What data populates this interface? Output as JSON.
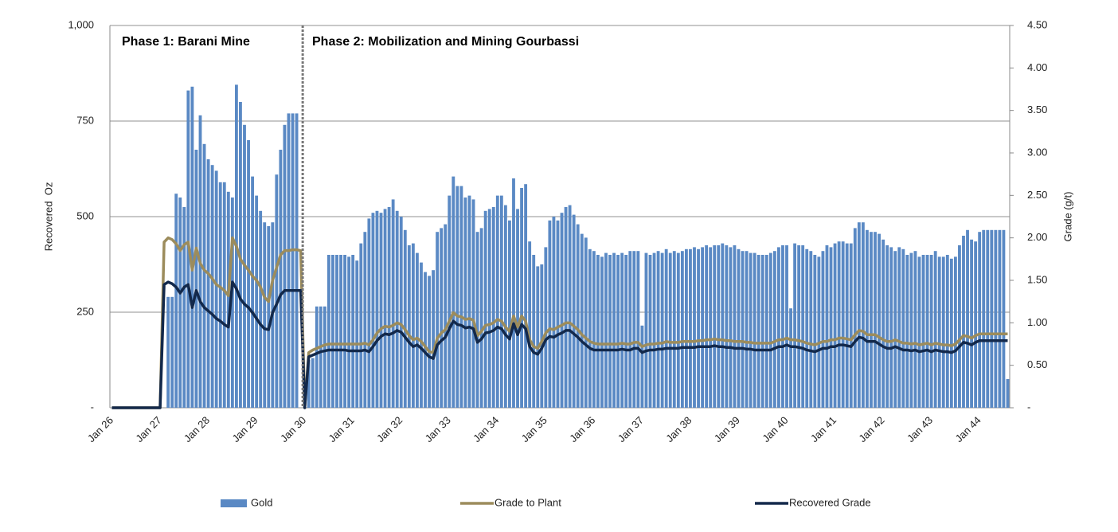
{
  "chart_data": {
    "type": "bar_line",
    "annotations": [
      "Phase 1: Barani Mine",
      "Phase 2: Mobilization and Mining Gourbassi"
    ],
    "y_label": "Recovered  Oz",
    "y2_label": "Grade (g/t)",
    "categories": [
      "Jan 26",
      null,
      null,
      null,
      null,
      null,
      null,
      null,
      null,
      null,
      null,
      null,
      "Jan 27",
      null,
      null,
      null,
      null,
      null,
      null,
      null,
      null,
      null,
      null,
      null,
      "Jan 28",
      null,
      null,
      null,
      null,
      null,
      null,
      null,
      null,
      null,
      null,
      null,
      "Jan 29",
      null,
      null,
      null,
      null,
      null,
      null,
      null,
      null,
      null,
      null,
      null,
      "Jan 30",
      null,
      null,
      null,
      null,
      null,
      null,
      null,
      null,
      null,
      null,
      null,
      "Jan 31",
      null,
      null,
      null,
      null,
      null,
      null,
      null,
      null,
      null,
      null,
      null,
      "Jan 32",
      null,
      null,
      null,
      null,
      null,
      null,
      null,
      null,
      null,
      null,
      null,
      "Jan 33",
      null,
      null,
      null,
      null,
      null,
      null,
      null,
      null,
      null,
      null,
      null,
      "Jan 34",
      null,
      null,
      null,
      null,
      null,
      null,
      null,
      null,
      null,
      null,
      null,
      "Jan 35",
      null,
      null,
      null,
      null,
      null,
      null,
      null,
      null,
      null,
      null,
      null,
      "Jan 36",
      null,
      null,
      null,
      null,
      null,
      null,
      null,
      null,
      null,
      null,
      null,
      "Jan 37",
      null,
      null,
      null,
      null,
      null,
      null,
      null,
      null,
      null,
      null,
      null,
      "Jan 38",
      null,
      null,
      null,
      null,
      null,
      null,
      null,
      null,
      null,
      null,
      null,
      "Jan 39",
      null,
      null,
      null,
      null,
      null,
      null,
      null,
      null,
      null,
      null,
      null,
      "Jan 40",
      null,
      null,
      null,
      null,
      null,
      null,
      null,
      null,
      null,
      null,
      null,
      "Jan 41",
      null,
      null,
      null,
      null,
      null,
      null,
      null,
      null,
      null,
      null,
      null,
      "Jan 42",
      null,
      null,
      null,
      null,
      null,
      null,
      null,
      null,
      null,
      null,
      null,
      "Jan 43",
      null,
      null,
      null,
      null,
      null,
      null,
      null,
      null,
      null,
      null,
      null,
      "Jan 44",
      null,
      null,
      null,
      null,
      null,
      null,
      null
    ],
    "series": [
      {
        "name": "Gold",
        "type": "bar",
        "color": "#5a89c4",
        "values": [
          0,
          0,
          0,
          0,
          0,
          0,
          0,
          0,
          0,
          0,
          0,
          0,
          0,
          0,
          290,
          290,
          560,
          550,
          525,
          830,
          840,
          675,
          765,
          690,
          650,
          635,
          620,
          590,
          590,
          565,
          550,
          845,
          800,
          740,
          700,
          605,
          555,
          515,
          485,
          475,
          485,
          610,
          675,
          740,
          770,
          770,
          770,
          0,
          0,
          125,
          130,
          265,
          265,
          265,
          400,
          400,
          400,
          400,
          400,
          395,
          400,
          385,
          430,
          460,
          495,
          510,
          515,
          510,
          520,
          525,
          545,
          515,
          500,
          465,
          425,
          430,
          405,
          380,
          355,
          345,
          360,
          460,
          470,
          480,
          555,
          605,
          580,
          580,
          550,
          555,
          545,
          460,
          470,
          515,
          520,
          525,
          555,
          555,
          530,
          490,
          600,
          520,
          575,
          585,
          435,
          400,
          370,
          375,
          420,
          490,
          500,
          490,
          510,
          525,
          530,
          505,
          480,
          455,
          445,
          415,
          410,
          400,
          395,
          405,
          400,
          405,
          400,
          405,
          400,
          410,
          410,
          410,
          215,
          405,
          400,
          405,
          410,
          405,
          415,
          405,
          410,
          405,
          410,
          415,
          415,
          420,
          415,
          420,
          425,
          420,
          425,
          425,
          430,
          425,
          420,
          425,
          415,
          410,
          410,
          405,
          405,
          400,
          400,
          400,
          405,
          410,
          420,
          425,
          425,
          260,
          430,
          425,
          425,
          415,
          410,
          400,
          395,
          410,
          425,
          420,
          430,
          435,
          435,
          430,
          430,
          470,
          485,
          485,
          465,
          460,
          460,
          455,
          440,
          425,
          420,
          410,
          420,
          415,
          400,
          405,
          410,
          395,
          400,
          400,
          400,
          410,
          395,
          395,
          400,
          390,
          395,
          425,
          450,
          465,
          440,
          435,
          460,
          465,
          465,
          465,
          465,
          465,
          465,
          75
        ]
      },
      {
        "name": "Grade to Plant",
        "type": "line",
        "axis": "y2",
        "color": "#9c8c5c",
        "values": [
          0,
          0,
          0,
          0,
          0,
          0,
          0,
          0,
          0,
          0,
          0,
          0,
          0,
          1.95,
          2.0,
          1.98,
          1.93,
          1.85,
          1.92,
          1.95,
          1.62,
          1.88,
          1.7,
          1.62,
          1.58,
          1.52,
          1.45,
          1.42,
          1.38,
          1.32,
          2.0,
          1.9,
          1.75,
          1.68,
          1.62,
          1.55,
          1.5,
          1.42,
          1.3,
          1.25,
          1.5,
          1.65,
          1.8,
          1.85,
          1.85,
          1.86,
          1.86,
          1.85,
          0,
          0.65,
          0.68,
          0.7,
          0.72,
          0.74,
          0.75,
          0.75,
          0.75,
          0.75,
          0.75,
          0.75,
          0.75,
          0.75,
          0.75,
          0.76,
          0.74,
          0.8,
          0.88,
          0.93,
          0.96,
          0.95,
          0.97,
          1.0,
          0.98,
          0.92,
          0.85,
          0.8,
          0.82,
          0.78,
          0.72,
          0.66,
          0.65,
          0.82,
          0.88,
          0.92,
          1.02,
          1.12,
          1.08,
          1.07,
          1.04,
          1.05,
          1.03,
          0.85,
          0.9,
          0.97,
          0.98,
          1.0,
          1.04,
          1.02,
          0.95,
          0.9,
          1.08,
          0.95,
          1.08,
          1.02,
          0.8,
          0.72,
          0.7,
          0.78,
          0.88,
          0.93,
          0.92,
          0.95,
          0.97,
          1.0,
          1.0,
          0.96,
          0.92,
          0.86,
          0.82,
          0.78,
          0.76,
          0.75,
          0.75,
          0.75,
          0.75,
          0.75,
          0.75,
          0.76,
          0.75,
          0.75,
          0.77,
          0.77,
          0.72,
          0.74,
          0.75,
          0.75,
          0.76,
          0.76,
          0.78,
          0.77,
          0.77,
          0.77,
          0.78,
          0.78,
          0.78,
          0.78,
          0.79,
          0.79,
          0.8,
          0.8,
          0.81,
          0.8,
          0.8,
          0.79,
          0.79,
          0.78,
          0.78,
          0.78,
          0.77,
          0.77,
          0.76,
          0.76,
          0.76,
          0.76,
          0.76,
          0.78,
          0.8,
          0.8,
          0.82,
          0.8,
          0.8,
          0.79,
          0.78,
          0.76,
          0.75,
          0.74,
          0.76,
          0.78,
          0.78,
          0.8,
          0.8,
          0.82,
          0.82,
          0.81,
          0.8,
          0.86,
          0.91,
          0.9,
          0.86,
          0.86,
          0.86,
          0.83,
          0.8,
          0.78,
          0.78,
          0.8,
          0.78,
          0.76,
          0.76,
          0.75,
          0.76,
          0.74,
          0.75,
          0.76,
          0.74,
          0.76,
          0.75,
          0.74,
          0.74,
          0.73,
          0.75,
          0.8,
          0.85,
          0.84,
          0.82,
          0.85,
          0.87,
          0.87,
          0.87,
          0.87,
          0.87,
          0.87,
          0.87,
          0.87
        ]
      },
      {
        "name": "Recovered Grade",
        "type": "line",
        "axis": "y2",
        "color": "#13294b",
        "values": [
          0,
          0,
          0,
          0,
          0,
          0,
          0,
          0,
          0,
          0,
          0,
          0,
          0,
          1.45,
          1.48,
          1.46,
          1.42,
          1.35,
          1.42,
          1.45,
          1.18,
          1.38,
          1.25,
          1.18,
          1.14,
          1.1,
          1.05,
          1.02,
          0.98,
          0.95,
          1.48,
          1.4,
          1.28,
          1.22,
          1.18,
          1.12,
          1.05,
          0.98,
          0.93,
          0.92,
          1.12,
          1.22,
          1.33,
          1.38,
          1.38,
          1.38,
          1.38,
          1.38,
          0,
          0.6,
          0.62,
          0.64,
          0.66,
          0.67,
          0.68,
          0.68,
          0.68,
          0.68,
          0.68,
          0.67,
          0.67,
          0.67,
          0.67,
          0.68,
          0.66,
          0.72,
          0.79,
          0.84,
          0.87,
          0.86,
          0.88,
          0.91,
          0.89,
          0.83,
          0.77,
          0.72,
          0.74,
          0.7,
          0.65,
          0.6,
          0.58,
          0.74,
          0.79,
          0.83,
          0.93,
          1.02,
          0.98,
          0.97,
          0.94,
          0.95,
          0.93,
          0.77,
          0.81,
          0.88,
          0.89,
          0.91,
          0.95,
          0.93,
          0.86,
          0.81,
          0.99,
          0.86,
          0.98,
          0.93,
          0.72,
          0.65,
          0.63,
          0.7,
          0.8,
          0.84,
          0.83,
          0.86,
          0.88,
          0.91,
          0.91,
          0.87,
          0.83,
          0.78,
          0.74,
          0.7,
          0.68,
          0.68,
          0.68,
          0.68,
          0.68,
          0.68,
          0.68,
          0.69,
          0.68,
          0.68,
          0.7,
          0.7,
          0.65,
          0.67,
          0.68,
          0.68,
          0.69,
          0.69,
          0.7,
          0.7,
          0.7,
          0.7,
          0.71,
          0.71,
          0.71,
          0.71,
          0.72,
          0.72,
          0.72,
          0.72,
          0.73,
          0.72,
          0.72,
          0.71,
          0.71,
          0.7,
          0.7,
          0.7,
          0.69,
          0.69,
          0.68,
          0.68,
          0.68,
          0.68,
          0.68,
          0.7,
          0.72,
          0.72,
          0.74,
          0.72,
          0.72,
          0.71,
          0.7,
          0.68,
          0.67,
          0.66,
          0.68,
          0.7,
          0.7,
          0.72,
          0.72,
          0.74,
          0.74,
          0.73,
          0.72,
          0.78,
          0.83,
          0.82,
          0.78,
          0.78,
          0.78,
          0.75,
          0.72,
          0.7,
          0.7,
          0.72,
          0.7,
          0.68,
          0.68,
          0.67,
          0.68,
          0.66,
          0.67,
          0.68,
          0.66,
          0.68,
          0.67,
          0.66,
          0.66,
          0.65,
          0.67,
          0.72,
          0.77,
          0.76,
          0.74,
          0.77,
          0.79,
          0.79,
          0.79,
          0.79,
          0.79,
          0.79,
          0.79,
          0.79
        ]
      }
    ],
    "ylim": [
      0,
      1000
    ],
    "yticks": [
      {
        "value": 0,
        "label": "-"
      },
      250,
      500,
      750,
      {
        "value": 1000,
        "label": "1,000"
      }
    ],
    "y2lim": [
      0,
      4.5
    ],
    "y2ticks": [
      {
        "value": 0,
        "label": "-"
      },
      {
        "value": 0.5,
        "label": "0.50"
      },
      {
        "value": 1,
        "label": "1.00"
      },
      {
        "value": 1.5,
        "label": "1.50"
      },
      {
        "value": 2,
        "label": "2.00"
      },
      {
        "value": 2.5,
        "label": "2.50"
      },
      {
        "value": 3,
        "label": "3.00"
      },
      {
        "value": 3.5,
        "label": "3.50"
      },
      {
        "value": 4,
        "label": "4.00"
      },
      {
        "value": 4.5,
        "label": "4.50"
      }
    ],
    "grid": true,
    "legend": "bottom"
  }
}
